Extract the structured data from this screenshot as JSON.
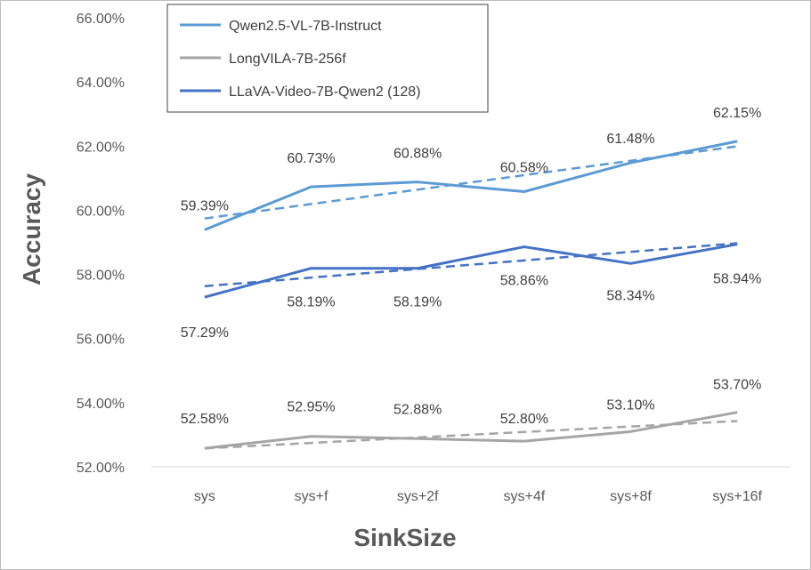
{
  "chart_data": {
    "type": "line",
    "categories": [
      "sys",
      "sys+f",
      "sys+2f",
      "sys+4f",
      "sys+8f",
      "sys+16f"
    ],
    "series": [
      {
        "name": "Qwen2.5-VL-7B-Instruct",
        "values": [
          59.39,
          60.73,
          60.88,
          60.58,
          61.48,
          62.15
        ],
        "labels": [
          "59.39%",
          "60.73%",
          "60.88%",
          "60.58%",
          "61.48%",
          "62.15%"
        ],
        "color": "#5b9bd5",
        "trendline": true
      },
      {
        "name": "LongVILA-7B-256f",
        "values": [
          52.58,
          52.95,
          52.88,
          52.8,
          53.1,
          53.7
        ],
        "labels": [
          "52.58%",
          "52.95%",
          "52.88%",
          "52.80%",
          "53.10%",
          "53.70%"
        ],
        "color": "#a5a5a5",
        "trendline": true
      },
      {
        "name": "LLaVA-Video-7B-Qwen2 (128)",
        "values": [
          57.29,
          58.19,
          58.19,
          58.86,
          58.34,
          58.94
        ],
        "labels": [
          "57.29%",
          "58.19%",
          "58.19%",
          "58.86%",
          "58.34%",
          "58.94%"
        ],
        "color": "#4472c4",
        "trendline": true
      }
    ],
    "xlabel": "SinkSize",
    "ylabel": "Accuracy",
    "ylim": [
      52,
      66
    ],
    "yticks": [
      52,
      54,
      56,
      58,
      60,
      62,
      64,
      66
    ],
    "ytick_labels": [
      "52.00%",
      "54.00%",
      "56.00%",
      "58.00%",
      "60.00%",
      "62.00%",
      "64.00%",
      "66.00%"
    ],
    "grid": false,
    "legend_position": "top-left"
  }
}
